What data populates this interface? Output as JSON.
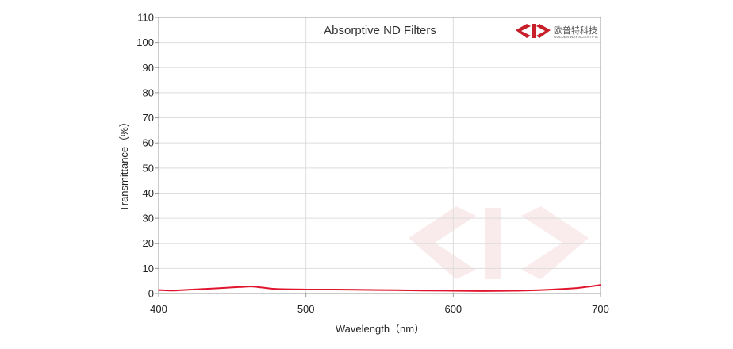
{
  "chart_data": {
    "type": "line",
    "title": "Absorptive ND Filters",
    "xlabel": "Wavelength（nm）",
    "ylabel": "Transmittance（%）",
    "xlim": [
      400,
      700
    ],
    "ylim": [
      0,
      110
    ],
    "xticks": [
      400,
      500,
      600,
      700
    ],
    "yticks": [
      0,
      10,
      20,
      30,
      40,
      50,
      60,
      70,
      80,
      90,
      100,
      110
    ],
    "grid": true,
    "series": [
      {
        "color": "#e0142d",
        "x": [
          400,
          410,
          420,
          440,
          455,
          463,
          470,
          480,
          500,
          520,
          550,
          580,
          600,
          620,
          640,
          660,
          680,
          690,
          700
        ],
        "y": [
          1.4,
          1.2,
          1.5,
          2.1,
          2.6,
          2.8,
          2.4,
          1.8,
          1.6,
          1.6,
          1.4,
          1.2,
          1.1,
          1.0,
          1.1,
          1.4,
          2.0,
          2.6,
          3.4
        ]
      }
    ]
  },
  "logo": {
    "name_cn": "欧普特科技",
    "name_en": "GOLDEN WAY SCIENTIFIC",
    "color": "#c8202a"
  }
}
